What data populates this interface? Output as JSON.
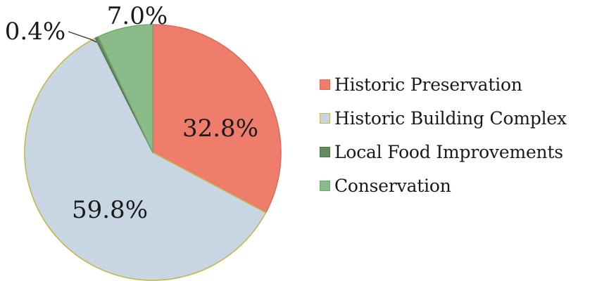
{
  "chart_data": {
    "type": "pie",
    "title": "",
    "categories": [
      "Historic Preservation",
      "Historic Building Complex",
      "Local Food Improvements",
      "Conservation"
    ],
    "values": [
      32.8,
      59.8,
      0.4,
      7.0
    ],
    "labels": [
      "32.8%",
      "59.8%",
      "0.4%",
      "7.0%"
    ],
    "colors": [
      "#ee7d6c",
      "#c8d5e3",
      "#628b64",
      "#8cbb8a"
    ],
    "slice_border_colors": [
      "#e06a58",
      "#c3b949",
      "#4a7a4d",
      "#72a871"
    ],
    "start_angle": "12 o'clock",
    "direction": "clockwise",
    "legend_position": "right"
  }
}
